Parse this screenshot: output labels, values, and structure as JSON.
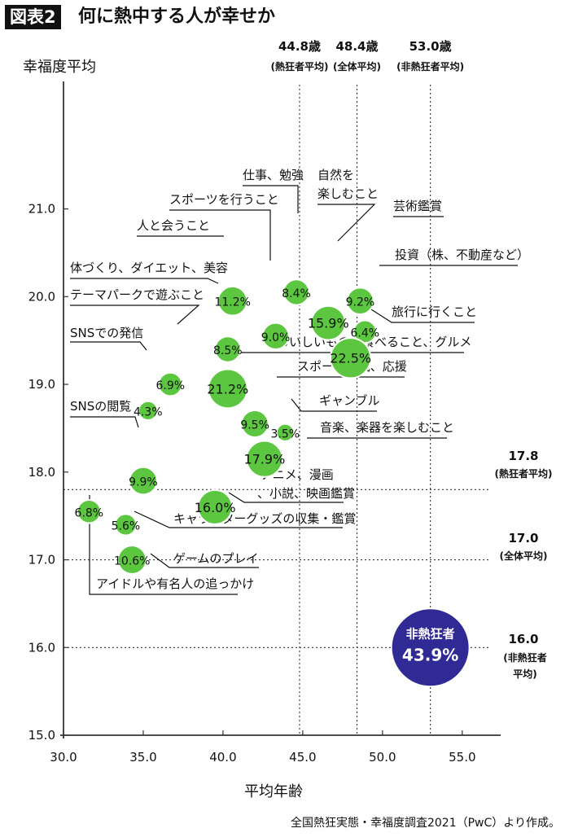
{
  "title": {
    "tag": "図表2",
    "text": "何に熱中する人が幸せか"
  },
  "source": "全国熱狂実態・幸福度調査2021（PwC）より作成。",
  "colors": {
    "bubble": "#5cc640",
    "highlight": "#302a94",
    "axis": "#111111",
    "grid": "#333333"
  },
  "chart_data": {
    "type": "scatter",
    "xlabel": "平均年齢",
    "ylabel": "幸福度平均",
    "xlim": [
      30,
      57
    ],
    "ylim": [
      15,
      22.5
    ],
    "xticks": [
      "30.0",
      "35.0",
      "40.0",
      "45.0",
      "50.0",
      "55.0"
    ],
    "yticks": [
      "15.0",
      "16.0",
      "17.0",
      "18.0",
      "19.0",
      "20.0",
      "21.0"
    ],
    "reference_lines": {
      "vertical": [
        {
          "x": 44.8,
          "value": "44.8歳",
          "sub": "(熱狂者平均)"
        },
        {
          "x": 48.4,
          "value": "48.4歳",
          "sub": "(全体平均)"
        },
        {
          "x": 53.0,
          "value": "53.0歳",
          "sub": "(非熱狂者平均)"
        }
      ],
      "horizontal": [
        {
          "y": 17.8,
          "value": "17.8",
          "sub": "(熱狂者平均)"
        },
        {
          "y": 17.0,
          "value": "17.0",
          "sub": "(全体平均)"
        },
        {
          "y": 16.0,
          "value": "16.0",
          "sub": "(非熱狂者平均)"
        }
      ]
    },
    "points": [
      {
        "category": "仕事、勉強",
        "pct": "8.4%",
        "x": 44.6,
        "y": 20.05,
        "size": 8.4
      },
      {
        "category": "自然を楽しむこと",
        "pct": "15.9%",
        "x": 46.6,
        "y": 19.7,
        "size": 15.9
      },
      {
        "category": "芸術鑑賞",
        "pct": "9.2%",
        "x": 48.6,
        "y": 19.95,
        "size": 9.2
      },
      {
        "category": "投資（株、不動産など）",
        "pct": "6.4%",
        "x": 48.9,
        "y": 19.6,
        "size": 6.4
      },
      {
        "category": "旅行に行くこと",
        "pct": "22.5%",
        "x": 48.0,
        "y": 19.3,
        "size": 22.5
      },
      {
        "category": "スポーツを行うこと",
        "pct": "9.0%",
        "x": 43.3,
        "y": 19.55,
        "size": 9.0
      },
      {
        "category": "人と会うこと",
        "pct": "11.2%",
        "x": 40.6,
        "y": 19.95,
        "size": 11.2
      },
      {
        "category": "体づくり、ダイエット、美容",
        "pct": "8.5%",
        "x": 40.3,
        "y": 19.4,
        "size": 8.5
      },
      {
        "category": "テーマパークで遊ぶこと",
        "pct": "6.9%",
        "x": 36.7,
        "y": 19.0,
        "size": 6.9
      },
      {
        "category": "SNSでの発信",
        "pct": "4.3%",
        "x": 35.3,
        "y": 18.7,
        "size": 4.3
      },
      {
        "category": "おいしいものを食べること、グルメ",
        "pct": "21.2%",
        "x": 40.3,
        "y": 18.95,
        "size": 21.2
      },
      {
        "category": "スポーツ観戦、応援",
        "pct": "9.5%",
        "x": 42.0,
        "y": 18.55,
        "size": 9.5
      },
      {
        "category": "ギャンブル",
        "pct": "3.5%",
        "x": 43.9,
        "y": 18.45,
        "size": 3.5
      },
      {
        "category": "音楽、楽器を楽しむこと",
        "pct": "17.9%",
        "x": 42.6,
        "y": 18.15,
        "size": 17.9
      },
      {
        "category": "SNSの閲覧",
        "pct": "9.9%",
        "x": 35.0,
        "y": 17.9,
        "size": 9.9
      },
      {
        "category": "アニメ、漫画、小説、映画鑑賞",
        "pct": "16.0%",
        "x": 39.5,
        "y": 17.6,
        "size": 16.0
      },
      {
        "category": "アイドルや有名人の追っかけ",
        "pct": "6.8%",
        "x": 31.6,
        "y": 17.55,
        "size": 6.8
      },
      {
        "category": "キャラクターグッズの収集・鑑賞",
        "pct": "5.6%",
        "x": 33.9,
        "y": 17.4,
        "size": 5.6
      },
      {
        "category": "ゲームのプレイ",
        "pct": "10.6%",
        "x": 34.3,
        "y": 17.0,
        "size": 10.6
      }
    ],
    "highlight": {
      "label": "非熱狂者",
      "pct": "43.9%",
      "x": 53.0,
      "y": 16.0,
      "size": 43.9
    }
  }
}
